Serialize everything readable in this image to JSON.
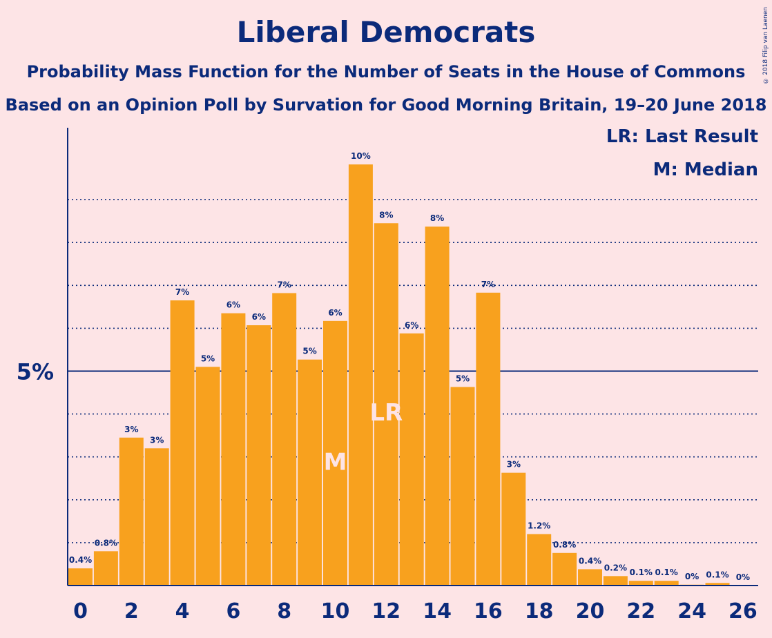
{
  "chart_data": {
    "type": "bar",
    "title": "Liberal Democrats",
    "subtitle_1": "Probability Mass Function for the Number of Seats in the House of Commons",
    "subtitle_2": "Based on an Opinion Poll by Survation for Good Morning Britain, 19–20 June 2018",
    "copyright": "© 2018 Filip van Laenen",
    "legend": [
      "LR: Last Result",
      "M: Median"
    ],
    "ylabel": "",
    "xlabel": "",
    "ylim": [
      0,
      10.7
    ],
    "y_tick_label": "5%",
    "x_tick_labels": [
      "0",
      "2",
      "4",
      "6",
      "8",
      "10",
      "12",
      "14",
      "16",
      "18",
      "20",
      "22",
      "24",
      "26"
    ],
    "categories": [
      0,
      1,
      2,
      3,
      4,
      5,
      6,
      7,
      8,
      9,
      10,
      11,
      12,
      13,
      14,
      15,
      16,
      17,
      18,
      19,
      20,
      21,
      22,
      23,
      24,
      25,
      26
    ],
    "values": [
      0.4,
      0.8,
      3.45,
      3.2,
      6.65,
      5.1,
      6.35,
      6.07,
      6.82,
      5.27,
      6.17,
      9.82,
      8.45,
      5.88,
      8.37,
      4.63,
      6.83,
      2.63,
      1.2,
      0.76,
      0.38,
      0.22,
      0.11,
      0.11,
      0.02,
      0.06,
      0.0
    ],
    "data_labels": [
      "0.4%",
      "0.8%",
      "3%",
      "3%",
      "7%",
      "5%",
      "6%",
      "6%",
      "7%",
      "5%",
      "6%",
      "10%",
      "8%",
      "6%",
      "8%",
      "5%",
      "7%",
      "3%",
      "1.2%",
      "0.8%",
      "0.4%",
      "0.2%",
      "0.1%",
      "0.1%",
      "0%",
      "0.1%",
      "0%"
    ],
    "median": {
      "seat": 10,
      "label": "M"
    },
    "last_result": {
      "seat": 12,
      "label": "LR"
    },
    "grid": true,
    "colors": {
      "bar": "#f8a11e",
      "text": "#0b2a7a",
      "background": "#fde4e6"
    }
  }
}
